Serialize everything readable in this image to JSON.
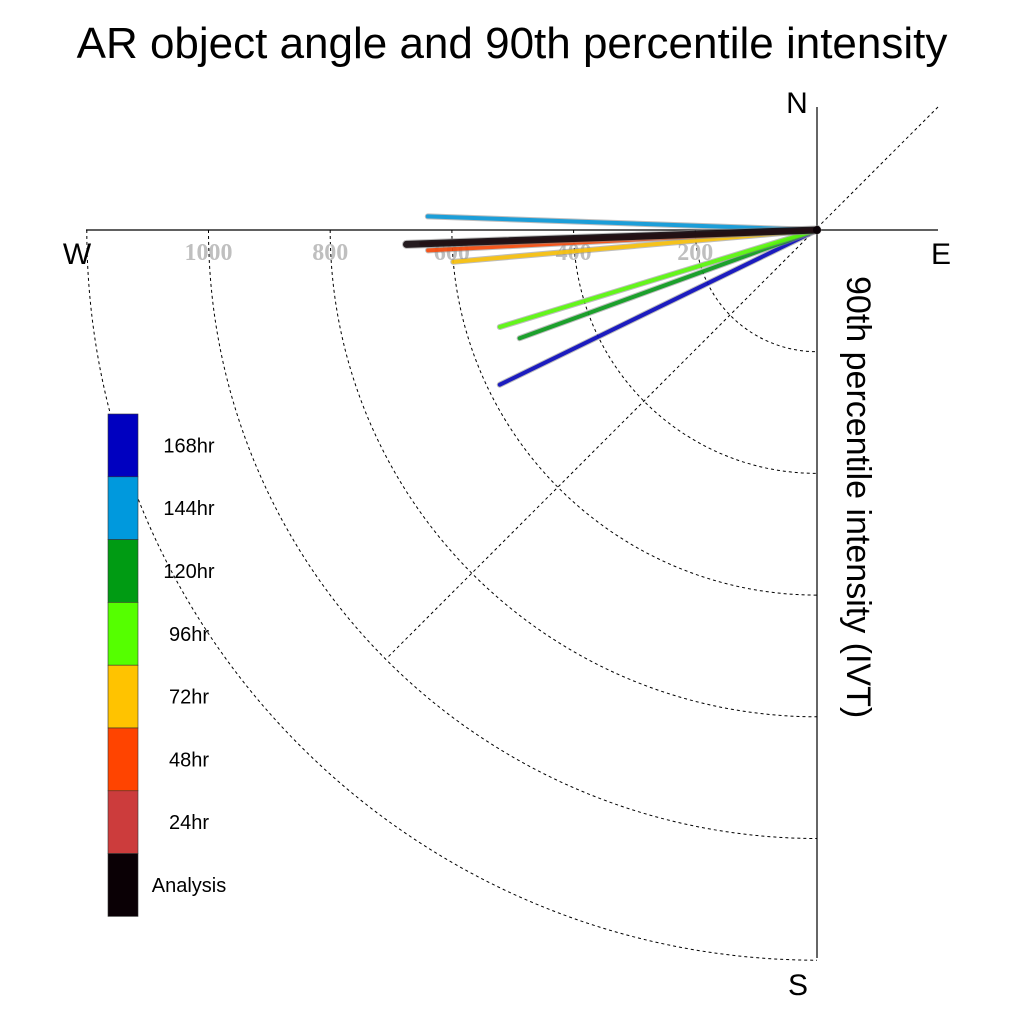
{
  "chart_data": {
    "type": "polar-vector",
    "title": "AR object angle and 90th percentile intensity",
    "ylabel": "90th percentile intensity (IVT)",
    "compass": {
      "n": "N",
      "e": "E",
      "s": "S",
      "w": "W"
    },
    "radial_ticks": [
      {
        "value": 200,
        "label": "200"
      },
      {
        "value": 400,
        "label": "400"
      },
      {
        "value": 600,
        "label": "600"
      },
      {
        "value": 800,
        "label": "800"
      },
      {
        "value": 1000,
        "label": "1000"
      },
      {
        "value": 1200,
        "label": ""
      }
    ],
    "rmax": 1200,
    "series": [
      {
        "name": "168hr",
        "color": "#0000c0",
        "intensity": 580,
        "angle": 244,
        "width": 4
      },
      {
        "name": "144hr",
        "color": "#0099dd",
        "intensity": 640,
        "angle": 272,
        "width": 4
      },
      {
        "name": "120hr",
        "color": "#009b13",
        "intensity": 520,
        "angle": 250,
        "width": 4
      },
      {
        "name": "96hr",
        "color": "#55ff00",
        "intensity": 545,
        "angle": 253,
        "width": 4
      },
      {
        "name": "72hr",
        "color": "#ffc300",
        "intensity": 600,
        "angle": 265,
        "width": 4
      },
      {
        "name": "48hr",
        "color": "#ff4400",
        "intensity": 640,
        "angle": 267,
        "width": 4
      },
      {
        "name": "24hr",
        "color": "#cc3c3c",
        "intensity": 650,
        "angle": 268,
        "width": 4
      },
      {
        "name": "Analysis",
        "color": "#0a0005",
        "intensity": 675,
        "angle": 268,
        "width": 7
      }
    ]
  }
}
